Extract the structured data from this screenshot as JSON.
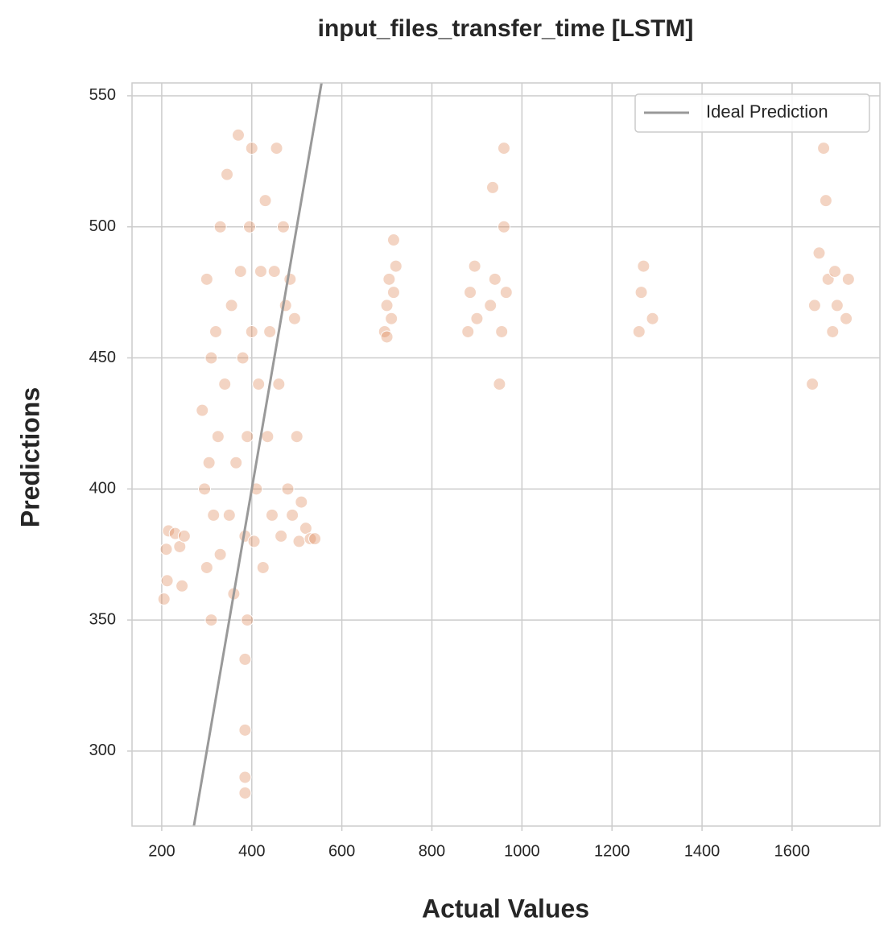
{
  "chart_data": {
    "type": "scatter",
    "title": "input_files_transfer_time [LSTM]",
    "xlabel": "Actual Values",
    "ylabel": "Predictions",
    "color": "#dd8452",
    "x": [
      205,
      210,
      215,
      212,
      230,
      240,
      245,
      250,
      290,
      295,
      300,
      300,
      305,
      310,
      310,
      315,
      320,
      325,
      330,
      330,
      340,
      345,
      350,
      355,
      360,
      365,
      370,
      375,
      380,
      385,
      390,
      390,
      395,
      400,
      400,
      405,
      410,
      415,
      420,
      425,
      430,
      435,
      440,
      445,
      450,
      455,
      460,
      465,
      470,
      475,
      480,
      485,
      490,
      495,
      500,
      505,
      510,
      520,
      530,
      540,
      385,
      385,
      385,
      385,
      695,
      700,
      705,
      710,
      715,
      720,
      700,
      715,
      880,
      885,
      895,
      900,
      930,
      935,
      940,
      950,
      955,
      960,
      960,
      965,
      1260,
      1265,
      1270,
      1290,
      1645,
      1650,
      1660,
      1670,
      1675,
      1680,
      1690,
      1695,
      1700,
      1720,
      1725
    ],
    "values": [
      358,
      377,
      384,
      365,
      383,
      378,
      363,
      382,
      430,
      400,
      480,
      370,
      410,
      450,
      350,
      390,
      460,
      420,
      500,
      375,
      440,
      520,
      390,
      470,
      360,
      410,
      535,
      483,
      450,
      382,
      350,
      420,
      500,
      530,
      460,
      380,
      400,
      440,
      483,
      370,
      510,
      420,
      460,
      390,
      483,
      530,
      440,
      382,
      500,
      470,
      400,
      480,
      390,
      465,
      420,
      380,
      395,
      385,
      381,
      381,
      335,
      308,
      290,
      284,
      460,
      470,
      480,
      465,
      475,
      485,
      458,
      495,
      460,
      475,
      485,
      465,
      470,
      515,
      480,
      440,
      460,
      500,
      530,
      475,
      460,
      475,
      485,
      465,
      440,
      470,
      490,
      530,
      510,
      480,
      460,
      483,
      470,
      465,
      480
    ],
    "reference_line": {
      "name": "Ideal Prediction",
      "color": "#999999"
    },
    "legend": "upper right",
    "grid": true,
    "xlim": [
      134,
      1795
    ],
    "ylim": [
      271.4,
      554.9
    ],
    "xticks": [
      200,
      400,
      600,
      800,
      1000,
      1200,
      1400,
      1600
    ],
    "yticks": [
      300,
      350,
      400,
      450,
      500,
      550
    ]
  }
}
